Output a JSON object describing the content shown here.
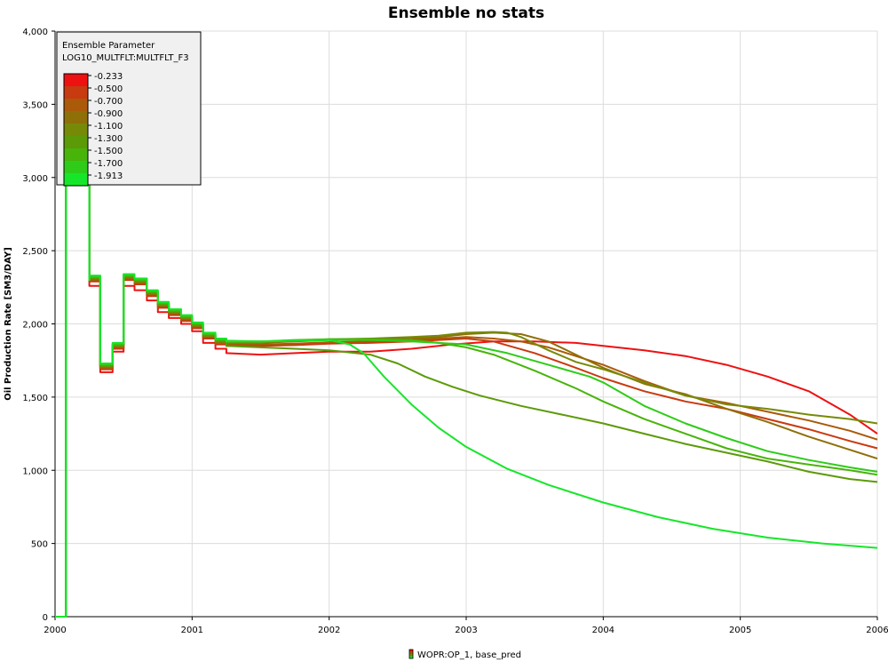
{
  "chart_data": {
    "type": "line",
    "title": "Ensemble no stats",
    "ylabel": "Oil Production Rate [SM3/DAY]",
    "xlabel": "",
    "xlim": [
      2000,
      2006
    ],
    "ylim": [
      0,
      4000
    ],
    "x_ticks": [
      "2000",
      "2001",
      "2002",
      "2003",
      "2004",
      "2005",
      "2006"
    ],
    "y_ticks": [
      "0",
      "500",
      "1,000",
      "1,500",
      "2,000",
      "2,500",
      "3,000",
      "3,500",
      "4,000"
    ],
    "grid": true,
    "legend": {
      "title": "Ensemble Parameter",
      "subtitle": "LOG10_MULTFLT:MULTFLT_F3",
      "placement": "top-left",
      "colors": [
        "#ee1111",
        "#c83a0f",
        "#aa5a08",
        "#8f6f08",
        "#778a08",
        "#5c9a08",
        "#48b40a",
        "#2ecc18",
        "#16e62a"
      ],
      "labels": [
        "-0.233",
        "-0.500",
        "-0.700",
        "-0.900",
        "-1.100",
        "-1.300",
        "-1.500",
        "-1.700",
        "-1.913"
      ]
    },
    "footer_legend": "WOPR:OP_1, base_pred",
    "common_start": {
      "x": [
        2000.0,
        2000.08,
        2000.08,
        2000.25,
        2000.25
      ],
      "y": [
        0,
        0,
        3850,
        3850,
        2300
      ]
    },
    "series": [
      {
        "param": -0.233,
        "color": "#ee1111",
        "x": [
          2000.25,
          2000.33,
          2000.33,
          2000.42,
          2000.42,
          2000.5,
          2000.5,
          2000.58,
          2000.58,
          2000.67,
          2000.67,
          2000.75,
          2000.75,
          2000.83,
          2000.83,
          2000.92,
          2000.92,
          2001.0,
          2001.0,
          2001.08,
          2001.08,
          2001.17,
          2001.17,
          2001.25,
          2001.25,
          2001.5,
          2001.75,
          2002.0,
          2002.3,
          2002.6,
          2002.9,
          2003.2,
          2003.5,
          2003.8,
          2004.0,
          2004.3,
          2004.6,
          2004.9,
          2005.2,
          2005.5,
          2005.8,
          2006.0
        ],
        "y": [
          2260,
          2260,
          1670,
          1670,
          1810,
          1810,
          2260,
          2260,
          2230,
          2230,
          2160,
          2160,
          2080,
          2080,
          2040,
          2040,
          2000,
          2000,
          1950,
          1950,
          1870,
          1870,
          1830,
          1830,
          1800,
          1790,
          1800,
          1810,
          1810,
          1830,
          1860,
          1880,
          1880,
          1870,
          1850,
          1820,
          1780,
          1720,
          1640,
          1540,
          1380,
          1250
        ]
      },
      {
        "param": -0.5,
        "color": "#c83a0f",
        "x": [
          2000.25,
          2000.33,
          2000.33,
          2000.42,
          2000.42,
          2000.5,
          2000.5,
          2000.58,
          2000.58,
          2000.67,
          2000.67,
          2000.75,
          2000.75,
          2000.83,
          2000.83,
          2000.92,
          2000.92,
          2001.0,
          2001.0,
          2001.08,
          2001.08,
          2001.17,
          2001.17,
          2001.25,
          2001.25,
          2001.5,
          2001.75,
          2002.0,
          2002.3,
          2002.6,
          2002.8,
          2003.0,
          2003.2,
          2003.5,
          2003.8,
          2004.0,
          2004.3,
          2004.6,
          2004.9,
          2005.2,
          2005.5,
          2005.8,
          2006.0
        ],
        "y": [
          2290,
          2290,
          1690,
          1690,
          1830,
          1830,
          2300,
          2300,
          2270,
          2270,
          2190,
          2190,
          2110,
          2110,
          2060,
          2060,
          2020,
          2020,
          1970,
          1970,
          1900,
          1900,
          1860,
          1860,
          1850,
          1850,
          1855,
          1865,
          1870,
          1880,
          1890,
          1900,
          1880,
          1800,
          1700,
          1630,
          1540,
          1470,
          1420,
          1350,
          1280,
          1200,
          1150
        ]
      },
      {
        "param": -0.7,
        "color": "#aa5a08",
        "x": [
          2000.25,
          2000.33,
          2000.33,
          2000.42,
          2000.42,
          2000.5,
          2000.5,
          2000.58,
          2000.58,
          2000.67,
          2000.67,
          2000.75,
          2000.75,
          2000.83,
          2000.83,
          2000.92,
          2000.92,
          2001.0,
          2001.0,
          2001.08,
          2001.08,
          2001.17,
          2001.17,
          2001.25,
          2001.25,
          2001.5,
          2001.75,
          2002.0,
          2002.3,
          2002.6,
          2002.8,
          2003.0,
          2003.2,
          2003.4,
          2003.6,
          2003.8,
          2004.0,
          2004.3,
          2004.6,
          2004.9,
          2005.2,
          2005.5,
          2005.8,
          2006.0
        ],
        "y": [
          2300,
          2300,
          1700,
          1700,
          1840,
          1840,
          2310,
          2310,
          2280,
          2280,
          2200,
          2200,
          2120,
          2120,
          2070,
          2070,
          2030,
          2030,
          1980,
          1980,
          1910,
          1910,
          1870,
          1870,
          1860,
          1860,
          1865,
          1875,
          1880,
          1890,
          1900,
          1910,
          1900,
          1880,
          1840,
          1780,
          1720,
          1610,
          1510,
          1460,
          1400,
          1340,
          1270,
          1210
        ]
      },
      {
        "param": -0.9,
        "color": "#8f6f08",
        "x": [
          2000.25,
          2000.33,
          2000.33,
          2000.42,
          2000.42,
          2000.5,
          2000.5,
          2000.58,
          2000.58,
          2000.67,
          2000.67,
          2000.75,
          2000.75,
          2000.83,
          2000.83,
          2000.92,
          2000.92,
          2001.0,
          2001.0,
          2001.08,
          2001.08,
          2001.17,
          2001.17,
          2001.25,
          2001.25,
          2001.5,
          2001.75,
          2002.0,
          2002.3,
          2002.6,
          2002.8,
          2003.0,
          2003.2,
          2003.4,
          2003.6,
          2003.8,
          2004.0,
          2004.3,
          2004.6,
          2004.9,
          2005.2,
          2005.5,
          2005.8,
          2006.0
        ],
        "y": [
          2305,
          2305,
          1705,
          1705,
          1845,
          1845,
          2315,
          2315,
          2285,
          2285,
          2205,
          2205,
          2125,
          2125,
          2075,
          2075,
          2035,
          2035,
          1985,
          1985,
          1915,
          1915,
          1875,
          1875,
          1870,
          1870,
          1880,
          1890,
          1895,
          1900,
          1910,
          1930,
          1940,
          1930,
          1880,
          1790,
          1700,
          1590,
          1520,
          1420,
          1330,
          1230,
          1140,
          1080
        ]
      },
      {
        "param": -1.1,
        "color": "#778a08",
        "x": [
          2000.25,
          2000.33,
          2000.33,
          2000.42,
          2000.42,
          2000.5,
          2000.5,
          2000.58,
          2000.58,
          2000.67,
          2000.67,
          2000.75,
          2000.75,
          2000.83,
          2000.83,
          2000.92,
          2000.92,
          2001.0,
          2001.0,
          2001.08,
          2001.08,
          2001.17,
          2001.17,
          2001.25,
          2001.25,
          2001.5,
          2001.75,
          2002.0,
          2002.3,
          2002.6,
          2002.8,
          2003.0,
          2003.2,
          2003.3,
          2003.4,
          2003.6,
          2003.8,
          2004.0,
          2004.3,
          2004.6,
          2004.9,
          2005.2,
          2005.5,
          2005.8,
          2006.0
        ],
        "y": [
          2310,
          2310,
          1710,
          1710,
          1850,
          1850,
          2320,
          2320,
          2290,
          2290,
          2210,
          2210,
          2130,
          2130,
          2080,
          2080,
          2040,
          2040,
          1990,
          1990,
          1920,
          1920,
          1880,
          1880,
          1875,
          1875,
          1885,
          1895,
          1900,
          1910,
          1920,
          1940,
          1945,
          1940,
          1910,
          1820,
          1740,
          1690,
          1600,
          1510,
          1450,
          1420,
          1380,
          1350,
          1320
        ]
      },
      {
        "param": -1.3,
        "color": "#5c9a08",
        "x": [
          2000.25,
          2000.33,
          2000.33,
          2000.42,
          2000.42,
          2000.5,
          2000.5,
          2000.58,
          2000.58,
          2000.67,
          2000.67,
          2000.75,
          2000.75,
          2000.83,
          2000.83,
          2000.92,
          2000.92,
          2001.0,
          2001.0,
          2001.08,
          2001.08,
          2001.17,
          2001.17,
          2001.25,
          2001.25,
          2001.5,
          2001.75,
          2002.0,
          2002.3,
          2002.5,
          2002.7,
          2002.9,
          2003.1,
          2003.4,
          2003.7,
          2004.0,
          2004.3,
          2004.6,
          2004.9,
          2005.2,
          2005.5,
          2005.8,
          2006.0
        ],
        "y": [
          2315,
          2315,
          1715,
          1715,
          1855,
          1855,
          2325,
          2325,
          2295,
          2295,
          2215,
          2215,
          2135,
          2135,
          2085,
          2085,
          2045,
          2045,
          1995,
          1995,
          1925,
          1925,
          1885,
          1885,
          1850,
          1840,
          1830,
          1820,
          1790,
          1730,
          1640,
          1570,
          1510,
          1440,
          1380,
          1320,
          1250,
          1180,
          1120,
          1060,
          990,
          940,
          920
        ]
      },
      {
        "param": -1.5,
        "color": "#48b40a",
        "x": [
          2000.25,
          2000.33,
          2000.33,
          2000.42,
          2000.42,
          2000.5,
          2000.5,
          2000.58,
          2000.58,
          2000.67,
          2000.67,
          2000.75,
          2000.75,
          2000.83,
          2000.83,
          2000.92,
          2000.92,
          2001.0,
          2001.0,
          2001.08,
          2001.08,
          2001.17,
          2001.17,
          2001.25,
          2001.25,
          2001.5,
          2001.75,
          2002.0,
          2002.3,
          2002.6,
          2002.8,
          2003.0,
          2003.2,
          2003.5,
          2003.8,
          2004.0,
          2004.3,
          2004.6,
          2004.9,
          2005.2,
          2005.5,
          2005.8,
          2006.0
        ],
        "y": [
          2320,
          2320,
          1720,
          1720,
          1860,
          1860,
          2330,
          2330,
          2300,
          2300,
          2220,
          2220,
          2140,
          2140,
          2090,
          2090,
          2050,
          2050,
          2000,
          2000,
          1930,
          1930,
          1890,
          1890,
          1880,
          1880,
          1890,
          1895,
          1895,
          1890,
          1870,
          1840,
          1790,
          1680,
          1560,
          1470,
          1350,
          1250,
          1150,
          1080,
          1040,
          1000,
          970
        ]
      },
      {
        "param": -1.7,
        "color": "#2ecc18",
        "x": [
          2000.25,
          2000.33,
          2000.33,
          2000.42,
          2000.42,
          2000.5,
          2000.5,
          2000.58,
          2000.58,
          2000.67,
          2000.67,
          2000.75,
          2000.75,
          2000.83,
          2000.83,
          2000.92,
          2000.92,
          2001.0,
          2001.0,
          2001.08,
          2001.08,
          2001.17,
          2001.17,
          2001.25,
          2001.25,
          2001.5,
          2001.75,
          2002.0,
          2002.3,
          2002.6,
          2002.8,
          2003.0,
          2003.3,
          2003.6,
          2003.9,
          2004.0,
          2004.3,
          2004.6,
          2004.9,
          2005.2,
          2005.5,
          2005.8,
          2006.0
        ],
        "y": [
          2325,
          2325,
          1725,
          1725,
          1865,
          1865,
          2335,
          2335,
          2305,
          2305,
          2225,
          2225,
          2145,
          2145,
          2095,
          2095,
          2055,
          2055,
          2005,
          2005,
          1935,
          1935,
          1895,
          1895,
          1885,
          1880,
          1885,
          1890,
          1890,
          1880,
          1870,
          1860,
          1800,
          1720,
          1640,
          1600,
          1440,
          1320,
          1220,
          1130,
          1070,
          1020,
          990
        ]
      },
      {
        "param": -1.913,
        "color": "#16e62a",
        "x": [
          2000.25,
          2000.33,
          2000.33,
          2000.42,
          2000.42,
          2000.5,
          2000.5,
          2000.58,
          2000.58,
          2000.67,
          2000.67,
          2000.75,
          2000.75,
          2000.83,
          2000.83,
          2000.92,
          2000.92,
          2001.0,
          2001.0,
          2001.08,
          2001.08,
          2001.17,
          2001.17,
          2001.25,
          2001.25,
          2001.5,
          2001.75,
          2002.0,
          2002.15,
          2002.25,
          2002.4,
          2002.6,
          2002.8,
          2003.0,
          2003.3,
          2003.6,
          2004.0,
          2004.4,
          2004.8,
          2005.2,
          2005.6,
          2006.0
        ],
        "y": [
          2330,
          2330,
          1730,
          1730,
          1870,
          1870,
          2340,
          2340,
          2310,
          2310,
          2230,
          2230,
          2150,
          2150,
          2100,
          2100,
          2060,
          2060,
          2010,
          2010,
          1940,
          1940,
          1900,
          1900,
          1880,
          1880,
          1885,
          1890,
          1860,
          1800,
          1640,
          1450,
          1290,
          1160,
          1010,
          900,
          780,
          680,
          600,
          540,
          500,
          470
        ]
      }
    ]
  }
}
